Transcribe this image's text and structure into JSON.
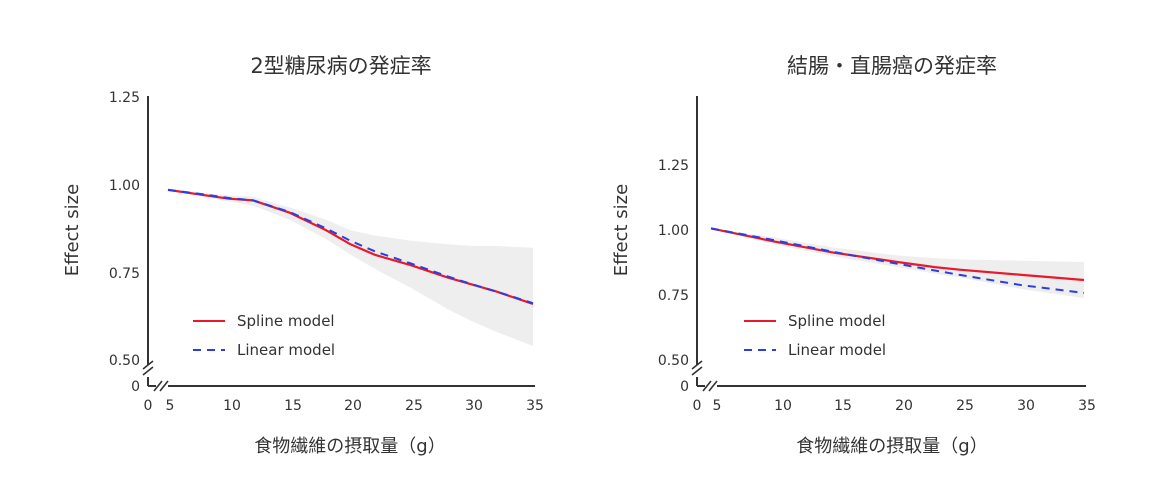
{
  "chart_data": [
    {
      "type": "line",
      "title": "2型糖尿病の発症率",
      "xlabel": "食物繊維の摂取量（g）",
      "ylabel": "Effect size",
      "x_ticks": [
        "0",
        "5",
        "10",
        "15",
        "20",
        "25",
        "30",
        "35"
      ],
      "y_ticks": [
        "0",
        "0.50",
        "0.75",
        "1.00",
        "1.25"
      ],
      "xlim": [
        5,
        35
      ],
      "ylim": [
        0.5,
        1.25
      ],
      "axis_break": true,
      "grid": false,
      "legend_position": "bottom-left",
      "x": [
        5,
        8,
        10,
        12,
        15,
        18,
        20,
        22,
        25,
        28,
        30,
        32,
        35
      ],
      "series": [
        {
          "name": "Spline model",
          "style": "solid",
          "color": "#e8192c",
          "values": [
            0.985,
            0.97,
            0.96,
            0.955,
            0.92,
            0.87,
            0.83,
            0.8,
            0.77,
            0.735,
            0.715,
            0.695,
            0.66
          ]
        },
        {
          "name": "Linear model",
          "style": "dashed",
          "color": "#2a3fe0",
          "values": [
            0.985,
            0.972,
            0.962,
            0.955,
            0.922,
            0.875,
            0.84,
            0.81,
            0.775,
            0.738,
            0.716,
            0.695,
            0.662
          ]
        }
      ],
      "confidence_band": {
        "color": "#eeeeee",
        "upper": [
          0.985,
          0.975,
          0.97,
          0.965,
          0.935,
          0.9,
          0.87,
          0.855,
          0.84,
          0.83,
          0.825,
          0.825,
          0.82
        ],
        "lower": [
          0.985,
          0.965,
          0.952,
          0.94,
          0.9,
          0.845,
          0.8,
          0.76,
          0.705,
          0.645,
          0.61,
          0.58,
          0.54
        ]
      }
    },
    {
      "type": "line",
      "title": "結腸・直腸癌の発症率",
      "xlabel": "食物繊維の摂取量（g）",
      "ylabel": "Effect size",
      "x_ticks": [
        "0",
        "5",
        "10",
        "15",
        "20",
        "25",
        "30",
        "35"
      ],
      "y_ticks": [
        "0",
        "0.50",
        "0.75",
        "1.00",
        "1.25"
      ],
      "xlim": [
        5,
        35
      ],
      "ylim": [
        0.5,
        1.5
      ],
      "axis_break": true,
      "grid": false,
      "legend_position": "bottom-left",
      "x": [
        5,
        10,
        15,
        20,
        23,
        25,
        30,
        35
      ],
      "series": [
        {
          "name": "Spline model",
          "style": "solid",
          "color": "#e8192c",
          "values": [
            1.01,
            0.96,
            0.915,
            0.88,
            0.86,
            0.85,
            0.83,
            0.81
          ]
        },
        {
          "name": "Linear model",
          "style": "dashed",
          "color": "#2a3fe0",
          "values": [
            1.01,
            0.965,
            0.918,
            0.873,
            0.847,
            0.83,
            0.79,
            0.76
          ]
        }
      ],
      "confidence_band": {
        "color": "#eeeeee",
        "upper": [
          1.01,
          0.975,
          0.935,
          0.905,
          0.895,
          0.89,
          0.885,
          0.88
        ],
        "lower": [
          1.01,
          0.95,
          0.9,
          0.86,
          0.835,
          0.82,
          0.775,
          0.74
        ]
      }
    }
  ]
}
